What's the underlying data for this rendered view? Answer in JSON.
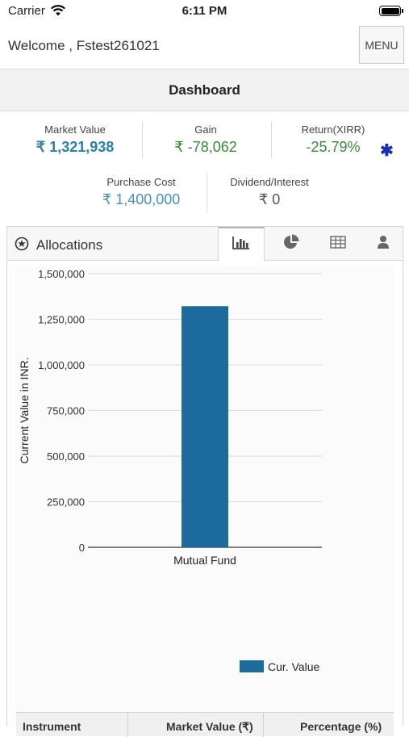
{
  "status_bar": {
    "carrier": "Carrier",
    "time": "6:11 PM"
  },
  "header": {
    "welcome": "Welcome , Fstest261021",
    "menu_label": "MENU"
  },
  "dashboard": {
    "title": "Dashboard"
  },
  "summary": {
    "market_value": {
      "label": "Market Value",
      "value": "₹ 1,321,938"
    },
    "gain": {
      "label": "Gain",
      "value": "₹ -78,062"
    },
    "return": {
      "label": "Return(XIRR)",
      "value": "-25.79%",
      "marker": "✱"
    },
    "purchase_cost": {
      "label": "Purchase Cost",
      "value": "₹ 1,400,000"
    },
    "dividend": {
      "label": "Dividend/Interest",
      "value": "₹ 0"
    }
  },
  "allocations": {
    "title": "Allocations",
    "icon": "settings-circle-icon",
    "tabs": [
      {
        "icon": "bar-chart-icon",
        "active": true
      },
      {
        "icon": "pie-chart-icon",
        "active": false
      },
      {
        "icon": "table-icon",
        "active": false
      },
      {
        "icon": "user-icon",
        "active": false
      }
    ]
  },
  "chart_data": {
    "type": "bar",
    "categories": [
      "Mutual Fund"
    ],
    "series": [
      {
        "name": "Cur. Value",
        "values": [
          1321938
        ],
        "color": "#1c6b9c"
      }
    ],
    "ylabel": "Current Value in INR.",
    "ylim": [
      0,
      1500000
    ],
    "yticks": [
      0,
      250000,
      500000,
      750000,
      1000000,
      1250000,
      1500000
    ],
    "ytick_labels": [
      "0",
      "250,000",
      "500,000",
      "750,000",
      "1,000,000",
      "1,250,000",
      "1,500,000"
    ],
    "grid": true,
    "legend": "bottom-right"
  },
  "table": {
    "headers": [
      "Instrument",
      "Market Value (₹)",
      "Percentage (%)"
    ]
  },
  "colors": {
    "bar": "#1c6b9c",
    "value_blue": "#2e7fa6",
    "value_green": "#3a8a3a",
    "asterisk": "#1a2fb8"
  }
}
